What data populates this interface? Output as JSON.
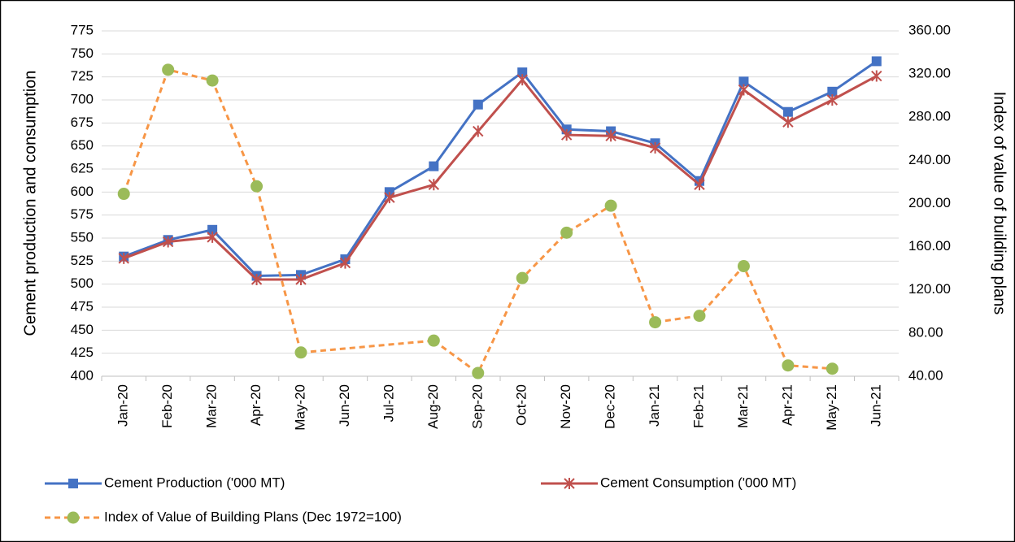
{
  "chart_data": {
    "type": "line",
    "y_label": "Cement production and consumption",
    "y2_label": "Index of value of building plans",
    "categories": [
      "Jan-20",
      "Feb-20",
      "Mar-20",
      "Apr-20",
      "May-20",
      "Jun-20",
      "Jul-20",
      "Aug-20",
      "Sep-20",
      "Oct-20",
      "Nov-20",
      "Dec-20",
      "Jan-21",
      "Feb-21",
      "Mar-21",
      "Apr-21",
      "May-21",
      "Jun-21"
    ],
    "series": [
      {
        "name": "Cement Production ('000 MT)",
        "color": "#4472c4",
        "marker": "square",
        "marker_color": "#4472c4",
        "dashed": false,
        "values": [
          530,
          548,
          559,
          509,
          510,
          527,
          600,
          628,
          695,
          730,
          668,
          666,
          653,
          612,
          720,
          687,
          709,
          742
        ]
      },
      {
        "name": "Cement Consumption ('000 MT)",
        "color": "#c0504d",
        "marker": "star",
        "marker_color": "#c0504d",
        "dashed": false,
        "values": [
          528,
          546,
          551,
          505,
          505,
          523,
          594,
          608,
          666,
          722,
          662,
          661,
          648,
          608,
          711,
          676,
          700,
          726
        ]
      },
      {
        "name": "Index of Value of Building Plans (Dec 1972=100)",
        "color": "#f79646",
        "marker": "circle",
        "marker_color": "#9bbb59",
        "dashed": true,
        "axis": "y2",
        "connect_gaps": true,
        "values": [
          209,
          324,
          314,
          216,
          62,
          null,
          null,
          73,
          43,
          131,
          173,
          198,
          90,
          96,
          142,
          50,
          47,
          null
        ]
      }
    ],
    "ylim": [
      400,
      775
    ],
    "yticks": [
      400,
      425,
      450,
      475,
      500,
      525,
      550,
      575,
      600,
      625,
      650,
      675,
      700,
      725,
      750,
      775
    ],
    "y2lim": [
      40,
      360
    ],
    "y2ticks": [
      {
        "value": 40,
        "label": "40.00"
      },
      {
        "value": 80,
        "label": "80.00"
      },
      {
        "value": 120,
        "label": "120.00"
      },
      {
        "value": 160,
        "label": "160.00"
      },
      {
        "value": 200,
        "label": "200.00"
      },
      {
        "value": 240,
        "label": "240.00"
      },
      {
        "value": 280,
        "label": "280.00"
      },
      {
        "value": 320,
        "label": "320.00"
      },
      {
        "value": 360,
        "label": "360.00"
      }
    ],
    "grid": true
  }
}
